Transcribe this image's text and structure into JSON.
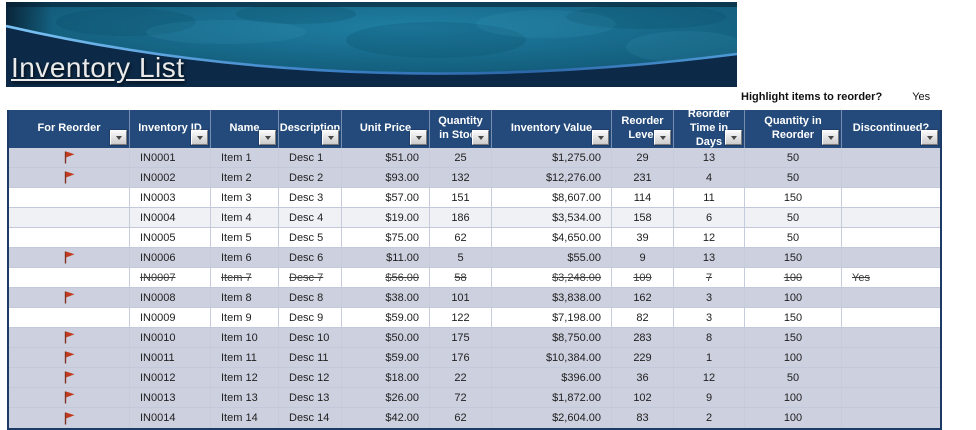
{
  "banner": {
    "title": "Inventory List"
  },
  "reorder_control": {
    "label": "Highlight items to reorder?",
    "value": "Yes"
  },
  "table": {
    "columns": [
      "For Reorder",
      "Inventory ID",
      "Name",
      "Description",
      "Unit Price",
      "Quantity in Stock",
      "Inventory Value",
      "Reorder Level",
      "Reorder Time in Days",
      "Quantity in Reorder",
      "Discontinued?"
    ],
    "rows": [
      {
        "flag": true,
        "highlight": true,
        "strike": false,
        "cells": [
          "",
          "IN0001",
          "Item 1",
          "Desc 1",
          "$51.00",
          "25",
          "$1,275.00",
          "29",
          "13",
          "50",
          ""
        ]
      },
      {
        "flag": true,
        "highlight": true,
        "strike": false,
        "cells": [
          "",
          "IN0002",
          "Item 2",
          "Desc 2",
          "$93.00",
          "132",
          "$12,276.00",
          "231",
          "4",
          "50",
          ""
        ]
      },
      {
        "flag": false,
        "highlight": false,
        "strike": false,
        "cells": [
          "",
          "IN0003",
          "Item 3",
          "Desc 3",
          "$57.00",
          "151",
          "$8,607.00",
          "114",
          "11",
          "150",
          ""
        ]
      },
      {
        "flag": false,
        "highlight": false,
        "strike": false,
        "cells": [
          "",
          "IN0004",
          "Item 4",
          "Desc 4",
          "$19.00",
          "186",
          "$3,534.00",
          "158",
          "6",
          "50",
          ""
        ]
      },
      {
        "flag": false,
        "highlight": false,
        "strike": false,
        "cells": [
          "",
          "IN0005",
          "Item 5",
          "Desc 5",
          "$75.00",
          "62",
          "$4,650.00",
          "39",
          "12",
          "50",
          ""
        ]
      },
      {
        "flag": true,
        "highlight": true,
        "strike": false,
        "cells": [
          "",
          "IN0006",
          "Item 6",
          "Desc 6",
          "$11.00",
          "5",
          "$55.00",
          "9",
          "13",
          "150",
          ""
        ]
      },
      {
        "flag": false,
        "highlight": false,
        "strike": true,
        "cells": [
          "",
          "IN0007",
          "Item 7",
          "Desc 7",
          "$56.00",
          "58",
          "$3,248.00",
          "109",
          "7",
          "100",
          "Yes"
        ]
      },
      {
        "flag": true,
        "highlight": true,
        "strike": false,
        "cells": [
          "",
          "IN0008",
          "Item 8",
          "Desc 8",
          "$38.00",
          "101",
          "$3,838.00",
          "162",
          "3",
          "100",
          ""
        ]
      },
      {
        "flag": false,
        "highlight": false,
        "strike": false,
        "cells": [
          "",
          "IN0009",
          "Item 9",
          "Desc 9",
          "$59.00",
          "122",
          "$7,198.00",
          "82",
          "3",
          "150",
          ""
        ]
      },
      {
        "flag": true,
        "highlight": true,
        "strike": false,
        "cells": [
          "",
          "IN0010",
          "Item 10",
          "Desc 10",
          "$50.00",
          "175",
          "$8,750.00",
          "283",
          "8",
          "150",
          ""
        ]
      },
      {
        "flag": true,
        "highlight": true,
        "strike": false,
        "cells": [
          "",
          "IN0011",
          "Item 11",
          "Desc 11",
          "$59.00",
          "176",
          "$10,384.00",
          "229",
          "1",
          "100",
          ""
        ]
      },
      {
        "flag": true,
        "highlight": true,
        "strike": false,
        "cells": [
          "",
          "IN0012",
          "Item 12",
          "Desc 12",
          "$18.00",
          "22",
          "$396.00",
          "36",
          "12",
          "50",
          ""
        ]
      },
      {
        "flag": true,
        "highlight": true,
        "strike": false,
        "cells": [
          "",
          "IN0013",
          "Item 13",
          "Desc 13",
          "$26.00",
          "72",
          "$1,872.00",
          "102",
          "9",
          "100",
          ""
        ]
      },
      {
        "flag": true,
        "highlight": true,
        "strike": false,
        "cells": [
          "",
          "IN0014",
          "Item 14",
          "Desc 14",
          "$42.00",
          "62",
          "$2,604.00",
          "83",
          "2",
          "100",
          ""
        ]
      }
    ]
  },
  "theme": {
    "header_bg": "#234a7b",
    "table_border": "#1c3a66",
    "highlight_row": "#cdd0df",
    "alt_row": "#f0f1f4",
    "flag_color": "#c23a1e",
    "banner_teal": "#156c90",
    "banner_navy": "#0c2947",
    "curve_blue": "#4f9fd8"
  }
}
